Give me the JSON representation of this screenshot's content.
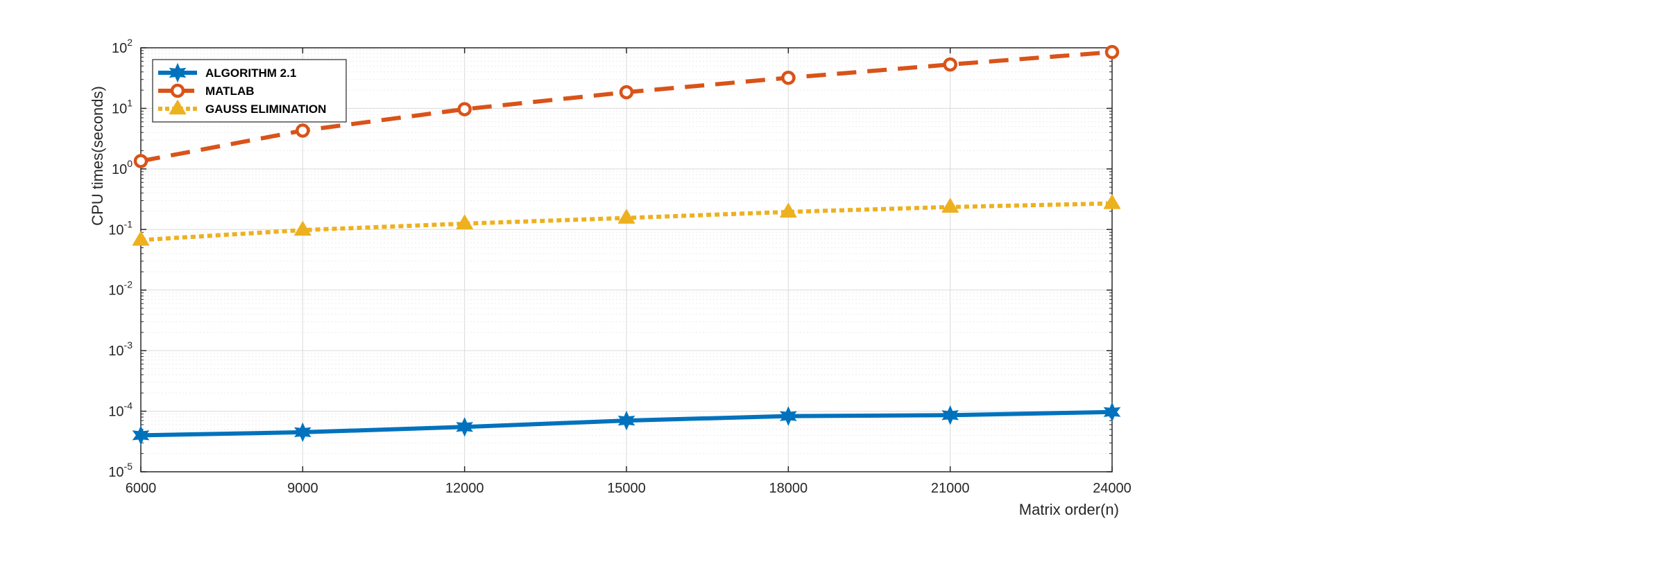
{
  "chart_data": {
    "type": "line",
    "title": "",
    "xlabel": "Matrix order(n)",
    "ylabel": "CPU times(seconds)",
    "x": [
      6000,
      9000,
      12000,
      15000,
      18000,
      21000,
      24000
    ],
    "xlim": [
      6000,
      24000
    ],
    "ylim": [
      1e-05,
      100
    ],
    "yscale": "log",
    "x_tick_labels": [
      "6000",
      "9000",
      "12000",
      "15000",
      "18000",
      "21000",
      "24000"
    ],
    "y_ticks": [
      {
        "base": "10",
        "exp": "-5"
      },
      {
        "base": "10",
        "exp": "-4"
      },
      {
        "base": "10",
        "exp": "-3"
      },
      {
        "base": "10",
        "exp": "-2"
      },
      {
        "base": "10",
        "exp": "-1"
      },
      {
        "base": "10",
        "exp": "0"
      },
      {
        "base": "10",
        "exp": "1"
      },
      {
        "base": "10",
        "exp": "2"
      }
    ],
    "grid": true,
    "minor_grid": true,
    "legend_position": "top-left",
    "series": [
      {
        "name": "ALGORITHM 2.1",
        "color": "#0072BD",
        "line_style": "solid",
        "marker": "hexagram",
        "values": [
          4e-05,
          4.5e-05,
          5.5e-05,
          7e-05,
          8.3e-05,
          8.6e-05,
          9.7e-05
        ]
      },
      {
        "name": "MATLAB",
        "color": "#D95319",
        "line_style": "dashed",
        "marker": "circle",
        "values": [
          1.35,
          4.3,
          9.7,
          18.5,
          32,
          53,
          85
        ]
      },
      {
        "name": "GAUSS ELIMINATION",
        "color": "#EDB120",
        "line_style": "dotted",
        "marker": "triangle",
        "values": [
          0.067,
          0.098,
          0.125,
          0.155,
          0.195,
          0.235,
          0.27
        ]
      }
    ]
  }
}
